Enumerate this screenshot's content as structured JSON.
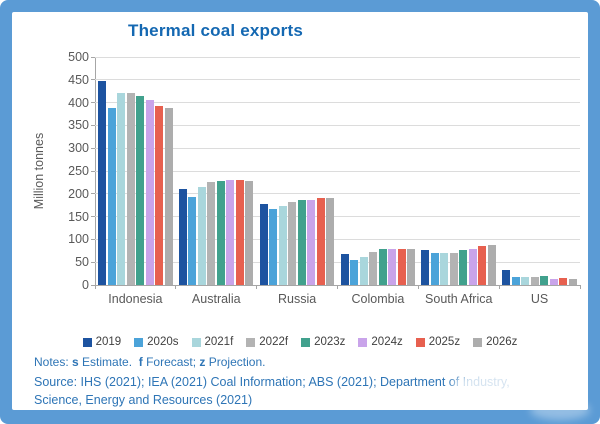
{
  "frame": {
    "background": "#5B9BD5",
    "card_background": "#FFFFFF"
  },
  "chart_data": {
    "type": "bar",
    "title": "Thermal coal exports",
    "title_color": "#1468B2",
    "ylabel": "Million tonnes",
    "ylim": [
      0,
      500
    ],
    "ytick_step": 50,
    "yticks": [
      0,
      50,
      100,
      150,
      200,
      250,
      300,
      350,
      400,
      450,
      500
    ],
    "grid": true,
    "legend_position": "bottom",
    "categories": [
      "Indonesia",
      "Australia",
      "Russia",
      "Colombia",
      "South Africa",
      "US"
    ],
    "series": [
      {
        "name": "2019",
        "color": "#1D53A0",
        "values": [
          448,
          210,
          178,
          68,
          77,
          33
        ]
      },
      {
        "name": "2020s",
        "color": "#4BA3D9",
        "values": [
          388,
          192,
          167,
          55,
          71,
          18
        ]
      },
      {
        "name": "2021f",
        "color": "#A9D6DC",
        "values": [
          420,
          216,
          174,
          61,
          70,
          18
        ]
      },
      {
        "name": "2022f",
        "color": "#B3B3B3",
        "values": [
          422,
          225,
          183,
          73,
          71,
          18
        ]
      },
      {
        "name": "2023z",
        "color": "#41A18D",
        "values": [
          415,
          228,
          187,
          80,
          77,
          20
        ]
      },
      {
        "name": "2024z",
        "color": "#C9A4EA",
        "values": [
          405,
          230,
          187,
          79,
          79,
          14
        ]
      },
      {
        "name": "2025z",
        "color": "#E7604F",
        "values": [
          393,
          230,
          190,
          79,
          86,
          15
        ]
      },
      {
        "name": "2026z",
        "color": "#ADADAD",
        "values": [
          388,
          228,
          191,
          79,
          88,
          14
        ]
      }
    ]
  },
  "notes": {
    "color": "#2E75B6",
    "segments": [
      {
        "text": "Notes: ",
        "bold": false
      },
      {
        "text": "s",
        "bold": true
      },
      {
        "text": " Estimate.  ",
        "bold": false
      },
      {
        "text": "f",
        "bold": true
      },
      {
        "text": " Forecast; ",
        "bold": false
      },
      {
        "text": "z",
        "bold": true
      },
      {
        "text": " Projection.",
        "bold": false
      }
    ]
  },
  "source": {
    "color": "#2E75B6",
    "lines": [
      "Source: IHS (2021); IEA (2021) Coal Information; ABS (2021); Department of Industry,",
      "Science, Energy and Resources (2021)"
    ]
  },
  "axis": {
    "text_color": "#595959",
    "line_color": "#A6A6A6",
    "grid_color": "#DCDCDC",
    "legend_text_color": "#404040"
  }
}
